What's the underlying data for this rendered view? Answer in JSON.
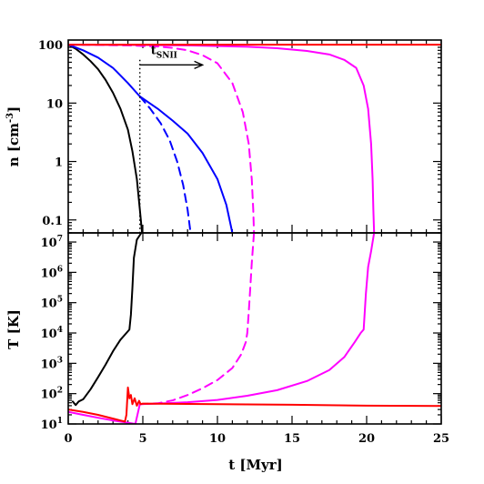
{
  "chart_data": [
    {
      "type": "line",
      "panel": "top",
      "ylabel_main": "n",
      "ylabel_unit": "[cm",
      "ylabel_exp": "-3",
      "ylabel_close": "]",
      "yscale": "log",
      "xlim": [
        0,
        25
      ],
      "ylim": [
        0.06,
        120
      ],
      "yticks": [
        {
          "value": 100,
          "label": "100"
        },
        {
          "value": 10,
          "label": "10"
        },
        {
          "value": 1,
          "label": "1"
        },
        {
          "value": 0.1,
          "label": "0.1"
        }
      ],
      "series": [
        {
          "color": "#000000",
          "dash": "solid",
          "points": [
            [
              0,
              100
            ],
            [
              0.5,
              85
            ],
            [
              1,
              68
            ],
            [
              1.5,
              52
            ],
            [
              2,
              38
            ],
            [
              2.5,
              25
            ],
            [
              3,
              15
            ],
            [
              3.5,
              8
            ],
            [
              4,
              3.5
            ],
            [
              4.3,
              1.5
            ],
            [
              4.6,
              0.5
            ],
            [
              4.8,
              0.15
            ],
            [
              4.95,
              0.06
            ]
          ]
        },
        {
          "color": "#0000ff",
          "dash": "solid",
          "points": [
            [
              0,
              100
            ],
            [
              1,
              80
            ],
            [
              2,
              60
            ],
            [
              3,
              40
            ],
            [
              4,
              22
            ],
            [
              4.8,
              13
            ],
            [
              6,
              8
            ],
            [
              7,
              5
            ],
            [
              8,
              3
            ],
            [
              9,
              1.4
            ],
            [
              10,
              0.5
            ],
            [
              10.6,
              0.18
            ],
            [
              11,
              0.06
            ]
          ]
        },
        {
          "color": "#0000ff",
          "dash": "dashed",
          "points": [
            [
              4.8,
              13
            ],
            [
              5.5,
              8
            ],
            [
              6.2,
              4.5
            ],
            [
              6.8,
              2.3
            ],
            [
              7.3,
              1.0
            ],
            [
              7.7,
              0.4
            ],
            [
              8,
              0.15
            ],
            [
              8.2,
              0.06
            ]
          ]
        },
        {
          "color": "#ff00ff",
          "dash": "dashed",
          "points": [
            [
              0,
              100
            ],
            [
              2,
              99
            ],
            [
              4,
              97
            ],
            [
              6,
              93
            ],
            [
              7,
              88
            ],
            [
              8,
              80
            ],
            [
              9,
              66
            ],
            [
              10,
              48
            ],
            [
              11,
              22
            ],
            [
              11.7,
              7
            ],
            [
              12.1,
              2
            ],
            [
              12.3,
              0.5
            ],
            [
              12.4,
              0.15
            ],
            [
              12.45,
              0.06
            ]
          ]
        },
        {
          "color": "#ff00ff",
          "dash": "solid",
          "points": [
            [
              0,
              100
            ],
            [
              4,
              99
            ],
            [
              8,
              97
            ],
            [
              12,
              92
            ],
            [
              14,
              87
            ],
            [
              16,
              78
            ],
            [
              17.5,
              68
            ],
            [
              18.5,
              55
            ],
            [
              19.3,
              40
            ],
            [
              19.8,
              20
            ],
            [
              20.1,
              8
            ],
            [
              20.3,
              2
            ],
            [
              20.4,
              0.5
            ],
            [
              20.45,
              0.15
            ],
            [
              20.5,
              0.06
            ]
          ]
        },
        {
          "color": "#ff0000",
          "dash": "solid",
          "points": [
            [
              0,
              100
            ],
            [
              25,
              100
            ]
          ]
        }
      ],
      "marker": {
        "x": 4.8,
        "style": "dotted"
      },
      "annotation": {
        "label": "t",
        "subscript": "SNII",
        "arrow_from": [
          4.8,
          45
        ],
        "arrow_to": [
          9,
          45
        ]
      }
    },
    {
      "type": "line",
      "panel": "bottom",
      "xlabel": "t  [Myr]",
      "ylabel_main": "T",
      "ylabel_unit": "[K]",
      "yscale": "log",
      "xlim": [
        0,
        25
      ],
      "ylim": [
        10,
        20000000
      ],
      "xticks": [
        {
          "value": 0,
          "label": "0"
        },
        {
          "value": 5,
          "label": "5"
        },
        {
          "value": 10,
          "label": "10"
        },
        {
          "value": 15,
          "label": "15"
        },
        {
          "value": 20,
          "label": "20"
        },
        {
          "value": 25,
          "label": "25"
        }
      ],
      "yticks": [
        {
          "value": 10,
          "base": "10",
          "exp": "1"
        },
        {
          "value": 100,
          "base": "10",
          "exp": "2"
        },
        {
          "value": 1000,
          "base": "10",
          "exp": "3"
        },
        {
          "value": 10000,
          "base": "10",
          "exp": "4"
        },
        {
          "value": 100000,
          "base": "10",
          "exp": "5"
        },
        {
          "value": 1000000,
          "base": "10",
          "exp": "6"
        },
        {
          "value": 10000000,
          "base": "10",
          "exp": "7"
        }
      ],
      "series": [
        {
          "color": "#000000",
          "dash": "solid",
          "points": [
            [
              0.3,
              55
            ],
            [
              0.5,
              42
            ],
            [
              0.7,
              55
            ],
            [
              1,
              65
            ],
            [
              1.5,
              140
            ],
            [
              2,
              350
            ],
            [
              2.5,
              900
            ],
            [
              3,
              2500
            ],
            [
              3.5,
              6000
            ],
            [
              3.9,
              10000
            ],
            [
              4.1,
              13000
            ],
            [
              4.2,
              40000
            ],
            [
              4.3,
              300000
            ],
            [
              4.4,
              3000000
            ],
            [
              4.6,
              12000000
            ],
            [
              4.9,
              20000000
            ]
          ]
        },
        {
          "color": "#ff00ff",
          "dash": "dashed",
          "points": [
            [
              4.8,
              45
            ],
            [
              6,
              48
            ],
            [
              7,
              60
            ],
            [
              8,
              90
            ],
            [
              9,
              150
            ],
            [
              10,
              280
            ],
            [
              11,
              700
            ],
            [
              11.6,
              2000
            ],
            [
              11.9,
              5000
            ],
            [
              12,
              10000
            ],
            [
              12.1,
              50000
            ],
            [
              12.2,
              300000
            ],
            [
              12.3,
              2000000
            ],
            [
              12.45,
              20000000
            ]
          ]
        },
        {
          "color": "#ff00ff",
          "dash": "solid",
          "points": [
            [
              0,
              25
            ],
            [
              1,
              20
            ],
            [
              2,
              16
            ],
            [
              3,
              13
            ],
            [
              4,
              11
            ],
            [
              4.5,
              10
            ],
            [
              4.8,
              45
            ],
            [
              6,
              47
            ],
            [
              8,
              52
            ],
            [
              10,
              62
            ],
            [
              12,
              85
            ],
            [
              14,
              130
            ],
            [
              16,
              260
            ],
            [
              17.5,
              600
            ],
            [
              18.5,
              1600
            ],
            [
              19.2,
              5000
            ],
            [
              19.6,
              10000
            ],
            [
              19.8,
              13000
            ],
            [
              19.95,
              200000
            ],
            [
              20.1,
              1500000
            ],
            [
              20.3,
              5000000
            ],
            [
              20.5,
              20000000
            ]
          ]
        },
        {
          "color": "#ff0000",
          "dash": "solid",
          "points": [
            [
              0,
              30
            ],
            [
              1,
              25
            ],
            [
              2,
              20
            ],
            [
              3,
              15
            ],
            [
              3.5,
              13
            ],
            [
              3.8,
              12
            ],
            [
              3.9,
              20
            ],
            [
              4,
              160
            ],
            [
              4.1,
              70
            ],
            [
              4.2,
              90
            ],
            [
              4.3,
              45
            ],
            [
              4.45,
              70
            ],
            [
              4.6,
              40
            ],
            [
              4.75,
              58
            ],
            [
              4.85,
              45
            ],
            [
              5,
              47
            ],
            [
              7,
              46
            ],
            [
              10,
              45
            ],
            [
              15,
              43
            ],
            [
              20,
              40
            ],
            [
              25,
              39
            ]
          ]
        }
      ]
    }
  ]
}
